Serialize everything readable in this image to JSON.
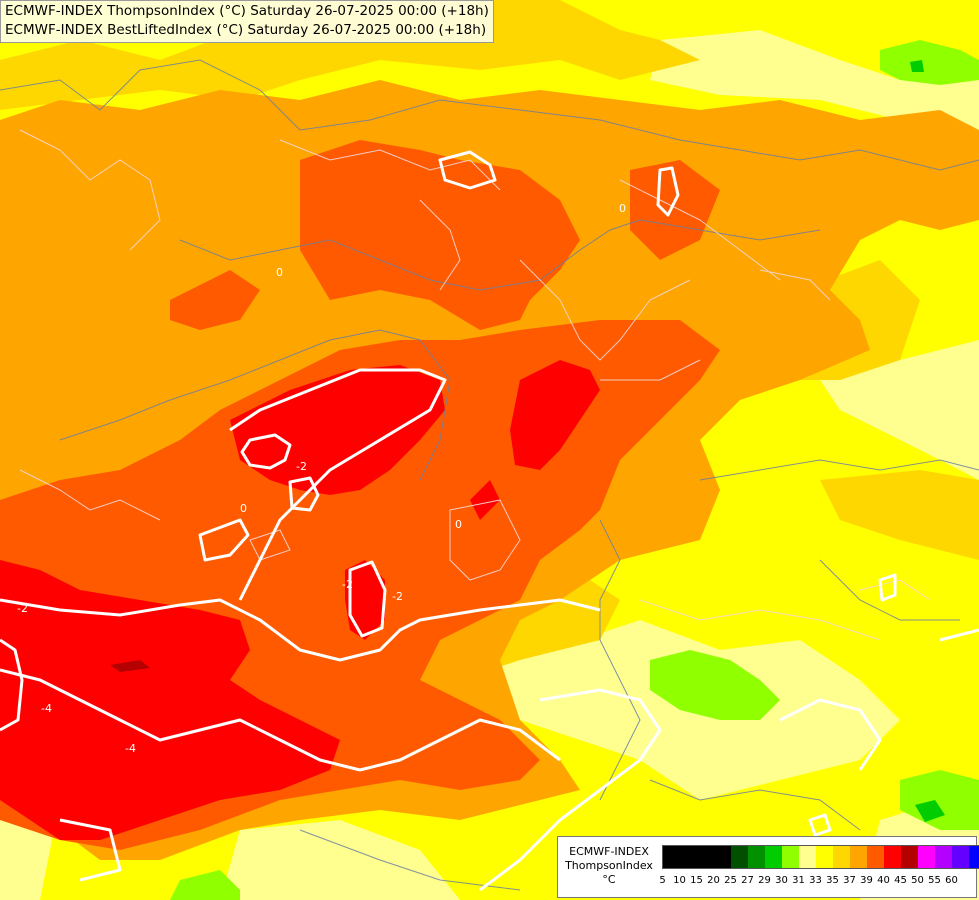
{
  "title_lines": [
    "ECMWF-INDEX ThompsonIndex (°C) Saturday 26-07-2025 00:00 (+18h)",
    "ECMWF-INDEX BestLiftedIndex (°C) Saturday 26-07-2025 00:00 (+18h)"
  ],
  "legend": {
    "model": "ECMWF-INDEX",
    "parameter": "ThompsonIndex",
    "unit": "°C",
    "ticks": [
      "5",
      "10",
      "15",
      "20",
      "25",
      "27",
      "29",
      "30",
      "31",
      "33",
      "35",
      "37",
      "39",
      "40",
      "45",
      "50",
      "55",
      "60"
    ],
    "colors": [
      "#000000",
      "#000000",
      "#000000",
      "#000000",
      "#005000",
      "#009000",
      "#00cc00",
      "#90ff00",
      "#ffff90",
      "#ffff00",
      "#ffd700",
      "#ffa500",
      "#ff5a00",
      "#ff0000",
      "#b40000",
      "#ff00ff",
      "#b400ff",
      "#6400ff",
      "#0000ff"
    ]
  },
  "contour_labels": [
    "0",
    "0",
    "0",
    "-2",
    "-2",
    "-2",
    "-4",
    "-4",
    "0",
    "-2"
  ],
  "colors": {
    "yellow": "#ffff00",
    "light_yellow": "#ffff90",
    "gold": "#ffd700",
    "orange": "#ffa500",
    "dark_orange": "#ff5a00",
    "red": "#ff0000",
    "lime": "#90ff00",
    "green": "#00cc00"
  }
}
